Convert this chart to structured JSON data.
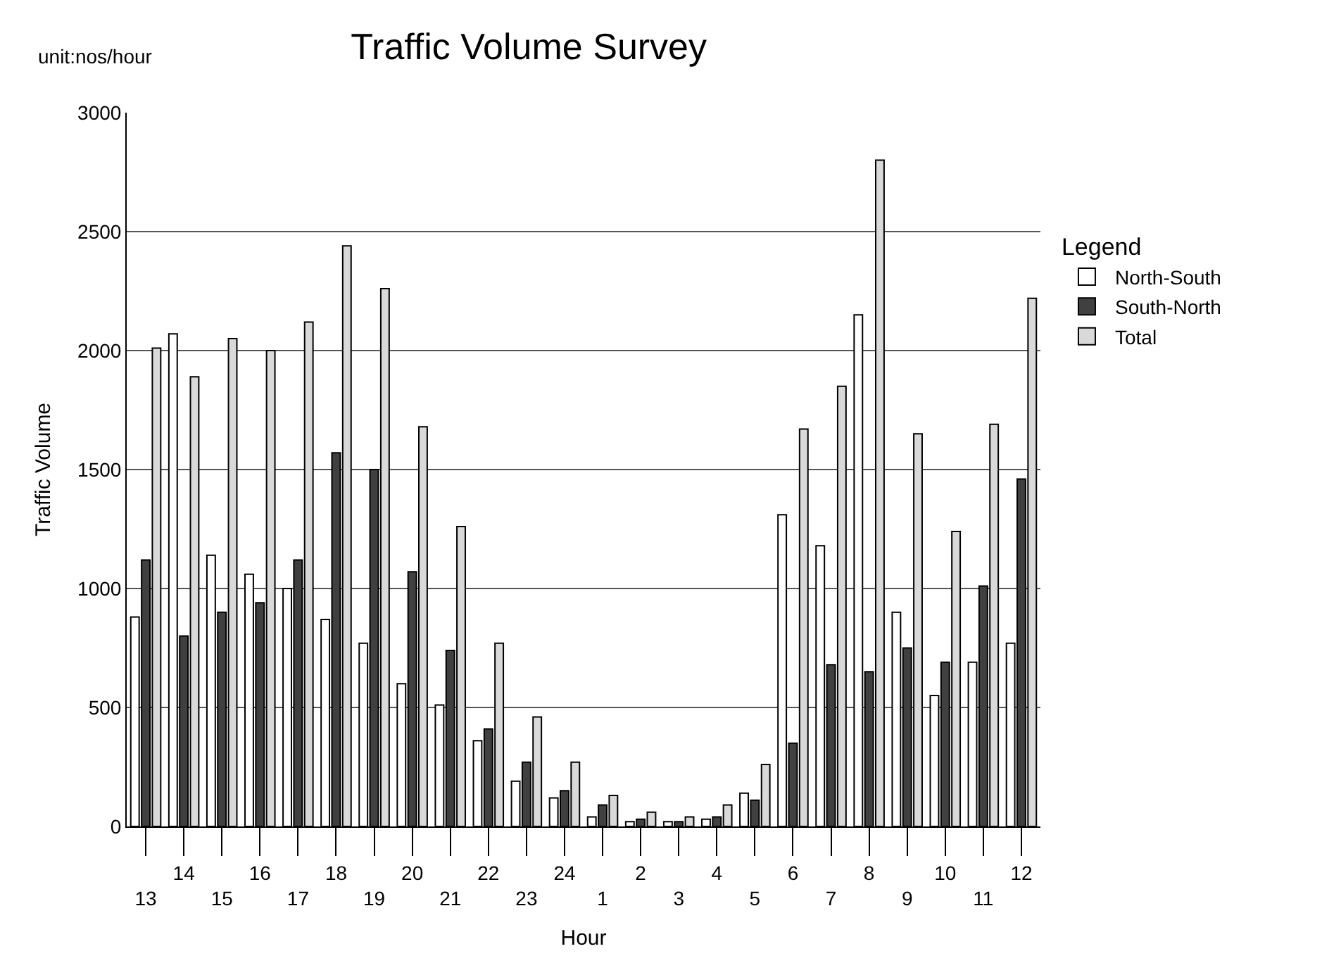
{
  "chart_data": {
    "type": "bar",
    "title": "Traffic Volume Survey",
    "xlabel": "Hour",
    "ylabel": "Traffic Volume",
    "legend_title": "Legend",
    "annotations": [
      "unit:nos/hour"
    ],
    "categories": [
      "13",
      "14",
      "15",
      "16",
      "17",
      "18",
      "19",
      "20",
      "21",
      "22",
      "23",
      "24",
      "1",
      "2",
      "3",
      "4",
      "5",
      "6",
      "7",
      "8",
      "9",
      "10",
      "11",
      "12"
    ],
    "series": [
      {
        "name": "North-South",
        "color": "#ffffff",
        "values": [
          880,
          2070,
          1140,
          1060,
          1000,
          870,
          770,
          600,
          510,
          360,
          190,
          120,
          40,
          20,
          20,
          30,
          140,
          1310,
          1180,
          2150,
          900,
          550,
          690,
          770
        ]
      },
      {
        "name": "South-North",
        "color": "#404040",
        "values": [
          1120,
          800,
          900,
          940,
          1120,
          1570,
          1500,
          1070,
          740,
          410,
          270,
          150,
          90,
          30,
          20,
          40,
          110,
          350,
          680,
          650,
          750,
          690,
          1010,
          1460
        ]
      },
      {
        "name": "Total",
        "color": "#d9d9d9",
        "values": [
          2010,
          1890,
          2050,
          2000,
          2120,
          2440,
          2260,
          1680,
          1260,
          770,
          460,
          270,
          130,
          60,
          40,
          90,
          260,
          1670,
          1850,
          2800,
          1650,
          1240,
          1690,
          2220
        ]
      }
    ],
    "ylim": [
      0,
      3000
    ],
    "yticks": [
      0,
      500,
      1000,
      1500,
      2000,
      2500,
      3000
    ],
    "grid": "y",
    "legend": "right"
  }
}
